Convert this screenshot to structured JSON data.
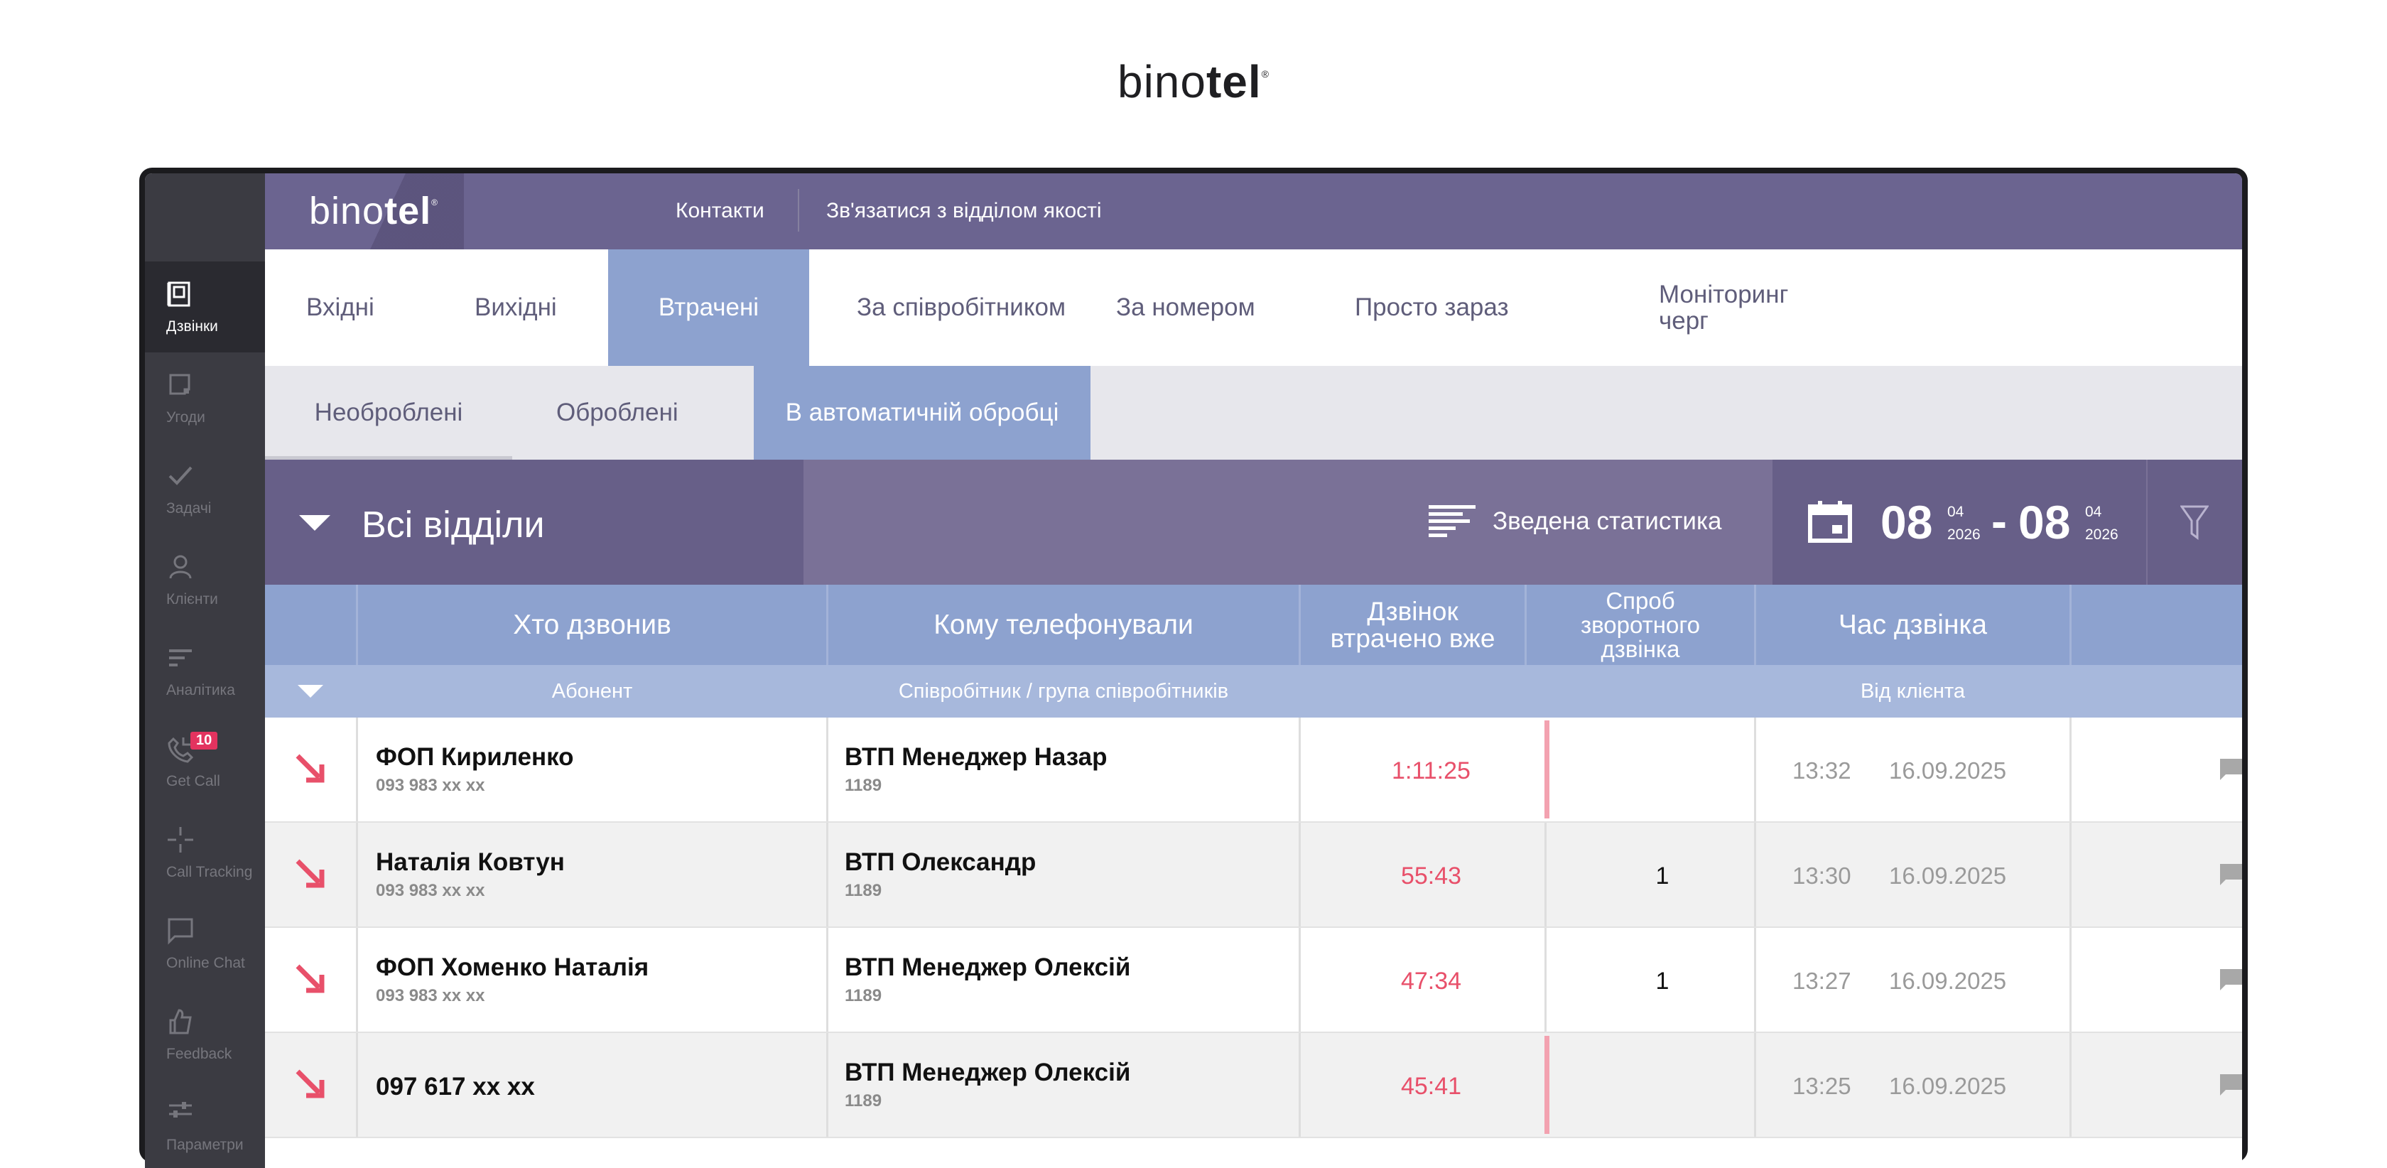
{
  "brand": {
    "logo_light": "bino",
    "logo_bold": "tel",
    "logo_mark": "®"
  },
  "header": {
    "logo_light": "bino",
    "logo_bold": "tel",
    "logo_mark": "®",
    "contacts": "Контакти",
    "quality": "Зв'язатися з відділом якості"
  },
  "sidebar": {
    "items": [
      {
        "label": "Дзвінки",
        "icon": "calls-book-icon",
        "active": true
      },
      {
        "label": "Угоди",
        "icon": "deals-icon"
      },
      {
        "label": "Задачі",
        "icon": "check-icon"
      },
      {
        "label": "Клієнти",
        "icon": "person-icon"
      },
      {
        "label": "Аналітика",
        "icon": "analytics-icon"
      },
      {
        "label": "Get Call",
        "icon": "phone-arrow-icon",
        "badge": "10"
      },
      {
        "label": "Call Tracking",
        "icon": "crosshair-icon"
      },
      {
        "label": "Online Chat",
        "icon": "chat-bubble-icon"
      },
      {
        "label": "Feedback",
        "icon": "thumbs-up-icon"
      },
      {
        "label": "Параметри",
        "icon": "sliders-icon"
      }
    ]
  },
  "tabs": {
    "incoming": "Вхідні",
    "outgoing": "Вихідні",
    "lost": "Втрачені",
    "by_employee": "За співробітником",
    "by_number": "За номером",
    "right_now": "Просто зараз",
    "queue_line1": "Моніторинг",
    "queue_line2": "черг"
  },
  "subtabs": {
    "unprocessed": "Необроблені",
    "processed": "Оброблені",
    "auto": "В автоматичній обробці"
  },
  "filter": {
    "department": "Всі відділи",
    "summary": "Зведена статистика",
    "date_from": {
      "day": "08",
      "month": "04",
      "year": "2026"
    },
    "date_sep": "-",
    "date_to": {
      "day": "08",
      "month": "04",
      "year": "2026"
    }
  },
  "table": {
    "headers": {
      "who": "Хто дзвонив",
      "to_whom": "Кому телефонували",
      "lost_line1": "Дзвінок",
      "lost_line2": "втрачено вже",
      "attempts_line1": "Спроб",
      "attempts_line2": "зворотного",
      "attempts_line3": "дзвінка",
      "time": "Час дзвінка"
    },
    "subheaders": {
      "subscriber": "Абонент",
      "employee": "Співробітник / група співробітників",
      "from_client": "Від клієнта"
    },
    "rows": [
      {
        "name": "ФОП Кириленко",
        "phone": "093 983 xx xx",
        "employee": "ВТП Менеджер Назар",
        "ext": "1189",
        "lost": "1:11:25",
        "attempts": "",
        "time": "13:32",
        "date": "16.09.2025"
      },
      {
        "name": "Наталія Ковтун",
        "phone": "093 983 xx xx",
        "employee": "ВТП Олександр",
        "ext": "1189",
        "lost": "55:43",
        "attempts": "1",
        "time": "13:30",
        "date": "16.09.2025"
      },
      {
        "name": "ФОП Хоменко Наталія",
        "phone": "093 983 xx xx",
        "employee": "ВТП Менеджер Олексій",
        "ext": "1189",
        "lost": "47:34",
        "attempts": "1",
        "time": "13:27",
        "date": "16.09.2025"
      },
      {
        "name": "097 617 xx xx",
        "phone": "",
        "employee": "ВТП Менеджер Олексій",
        "ext": "1189",
        "lost": "45:41",
        "attempts": "",
        "time": "13:25",
        "date": "16.09.2025"
      }
    ]
  },
  "colors": {
    "header_purple": "#6b6490",
    "active_tab_blue": "#8da2cf",
    "lost_red": "#e8506a",
    "sidebar_dark": "#3b3b42"
  }
}
